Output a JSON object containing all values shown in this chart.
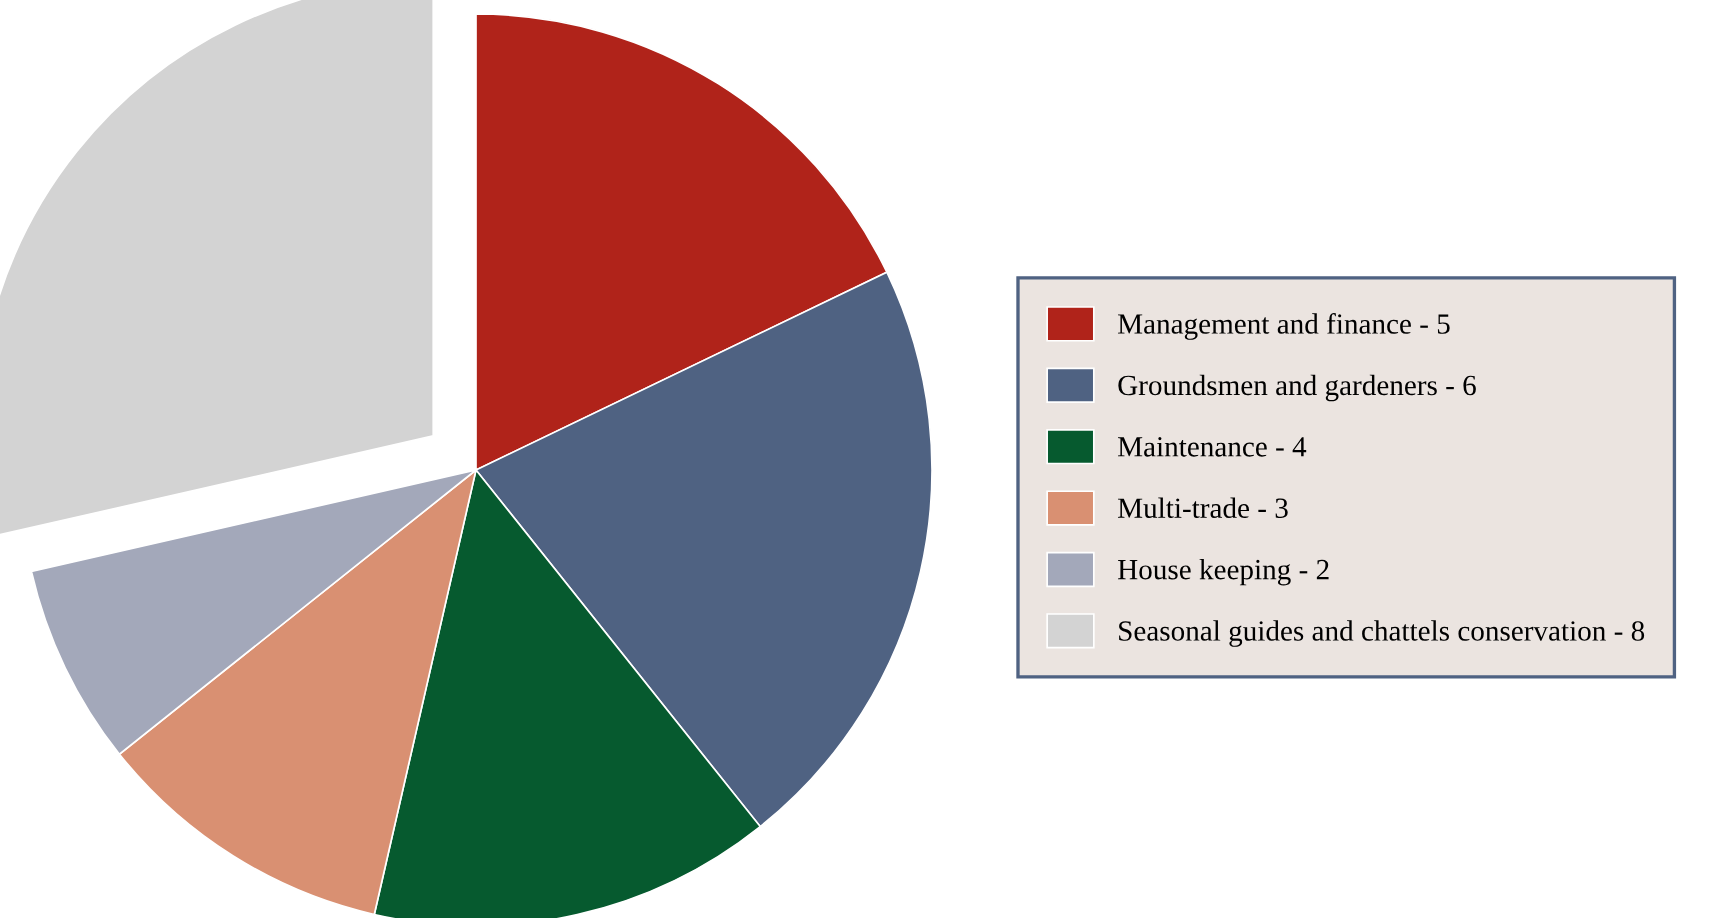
{
  "chart_data": {
    "type": "pie",
    "categories": [
      "Management and finance - 5",
      "Groundsmen and gardeners - 6",
      "Maintenance - 4",
      "Multi-trade - 3",
      "House keeping - 2",
      "Seasonal guides and chattels conservation - 8"
    ],
    "values": [
      17.86,
      21.43,
      14.29,
      10.71,
      7.14,
      28.57
    ],
    "colors": [
      "#b0231a",
      "#4f6282",
      "#065a2f",
      "#d99072",
      "#a3a8ba",
      "#d3d3d3"
    ],
    "legend": "right"
  }
}
